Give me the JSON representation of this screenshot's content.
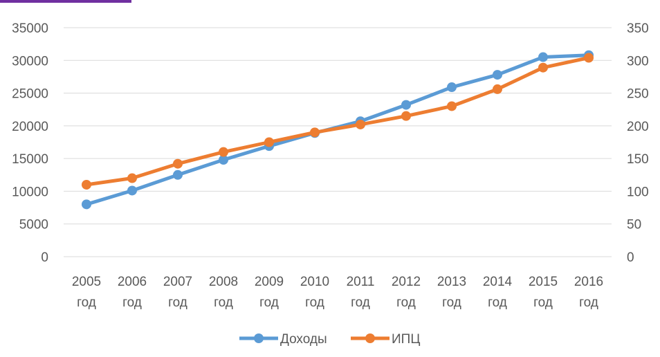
{
  "chart_data": {
    "type": "line",
    "categories": [
      "2005 год",
      "2006 год",
      "2007 год",
      "2008 год",
      "2009 год",
      "2010 год",
      "2011 год",
      "2012 год",
      "2013 год",
      "2014 год",
      "2015 год",
      "2016 год"
    ],
    "category_lines": [
      [
        "2005",
        "год"
      ],
      [
        "2006",
        "год"
      ],
      [
        "2007",
        "год"
      ],
      [
        "2008",
        "год"
      ],
      [
        "2009",
        "год"
      ],
      [
        "2010",
        "год"
      ],
      [
        "2011",
        "год"
      ],
      [
        "2012",
        "год"
      ],
      [
        "2013",
        "год"
      ],
      [
        "2014",
        "год"
      ],
      [
        "2015",
        "год"
      ],
      [
        "2016",
        "год"
      ]
    ],
    "series": [
      {
        "name": "Доходы",
        "axis": "left",
        "color": "#5b9bd5",
        "values": [
          8000,
          10100,
          12500,
          14800,
          16900,
          18900,
          20700,
          23200,
          25900,
          27800,
          30500,
          30800
        ]
      },
      {
        "name": "ИПЦ",
        "axis": "right",
        "color": "#ed7d31",
        "values": [
          110,
          120,
          142,
          160,
          175,
          190,
          202,
          215,
          230,
          256,
          289,
          304
        ]
      }
    ],
    "y_left": {
      "min": 0,
      "max": 35000,
      "ticks": [
        "0",
        "5000",
        "10000",
        "15000",
        "20000",
        "25000",
        "30000",
        "35000"
      ]
    },
    "y_right": {
      "min": 0,
      "max": 350,
      "ticks": [
        "0",
        "50",
        "100",
        "150",
        "200",
        "250",
        "300",
        "350"
      ]
    },
    "grid": true,
    "legend": "bottom",
    "title": "",
    "xlabel": "",
    "ylabel": ""
  }
}
